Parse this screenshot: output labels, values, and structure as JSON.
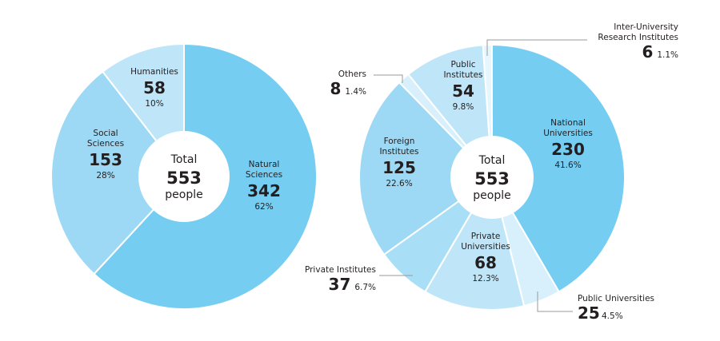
{
  "chart_data": [
    {
      "type": "pie",
      "center": {
        "title": "Total",
        "value": "553",
        "unit": "people"
      },
      "slices": [
        {
          "name": "Natural Sciences",
          "value": 342,
          "percent": "62%",
          "color": "#75cdf2"
        },
        {
          "name": "Social Sciences",
          "value": 153,
          "percent": "28%",
          "color": "#9dd9f4"
        },
        {
          "name": "Humanities",
          "value": 58,
          "percent": "10%",
          "color": "#bfe6f8"
        }
      ]
    },
    {
      "type": "pie",
      "center": {
        "title": "Total",
        "value": "553",
        "unit": "people"
      },
      "slices": [
        {
          "name": "National Universities",
          "value": 230,
          "percent": "41.6%",
          "color": "#75cdf2"
        },
        {
          "name": "Public Universities",
          "value": 25,
          "percent": "4.5%",
          "color": "#d7f0fb"
        },
        {
          "name": "Private Universities",
          "value": 68,
          "percent": "12.3%",
          "color": "#bfe6f8"
        },
        {
          "name": "Private Institutes",
          "value": 37,
          "percent": "6.7%",
          "color": "#a9dff6"
        },
        {
          "name": "Foreign Institutes",
          "value": 125,
          "percent": "22.6%",
          "color": "#9dd9f4"
        },
        {
          "name": "Others",
          "value": 8,
          "percent": "1.4%",
          "color": "#d7f0fb"
        },
        {
          "name": "Public Institutes",
          "value": 54,
          "percent": "9.8%",
          "color": "#bfe6f8"
        },
        {
          "name": "Inter-University Research Institutes",
          "value": 6,
          "percent": "1.1%",
          "color": "#e6f6fd"
        }
      ]
    }
  ]
}
